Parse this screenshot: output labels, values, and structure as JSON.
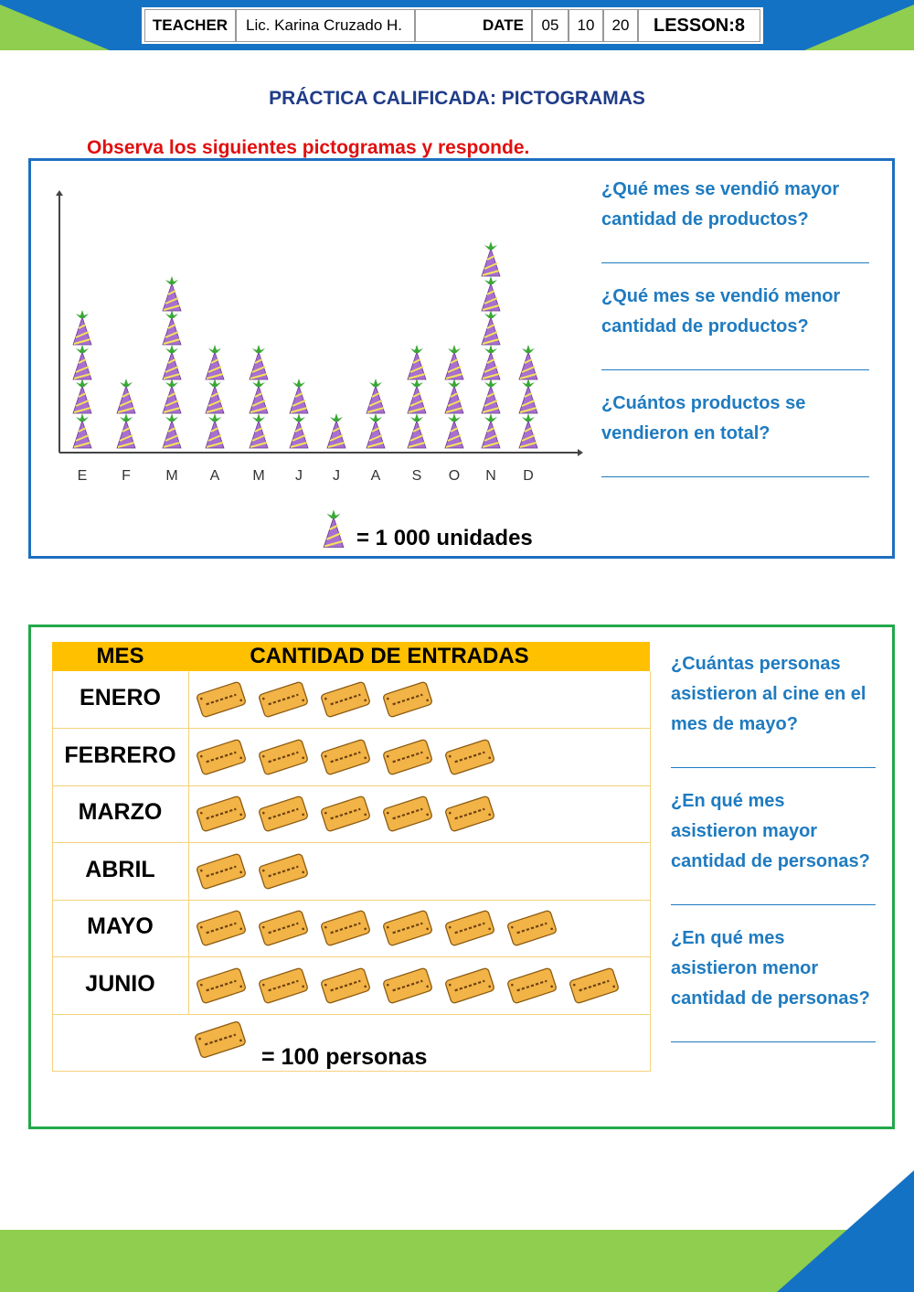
{
  "header": {
    "teacher_label": "TEACHER",
    "teacher": "Lic. Karina Cruzado H.",
    "date_label": "DATE",
    "date": [
      "05",
      "10",
      "20"
    ],
    "lesson": "LESSON:8"
  },
  "title": "PRÁCTICA CALIFICADA: PICTOGRAMAS",
  "instruction": "Observa los siguientes pictogramas y responde.",
  "pictogram1": {
    "categories": [
      "E",
      "F",
      "M",
      "A",
      "M",
      "J",
      "J",
      "A",
      "S",
      "O",
      "N",
      "D"
    ],
    "values": [
      4,
      2,
      5,
      3,
      3,
      2,
      1,
      2,
      3,
      3,
      6,
      3
    ],
    "legend": "= 1 000 unidades",
    "questions": [
      "¿Qué mes se vendió mayor cantidad de productos?",
      "¿Qué mes se vendió menor cantidad de productos?",
      "¿Cuántos productos se vendieron en total?"
    ]
  },
  "pictogram2": {
    "header": [
      "MES",
      "CANTIDAD DE ENTRADAS"
    ],
    "rows": [
      {
        "month": "ENERO",
        "count": 4
      },
      {
        "month": "FEBRERO",
        "count": 5
      },
      {
        "month": "MARZO",
        "count": 5
      },
      {
        "month": "ABRIL",
        "count": 2
      },
      {
        "month": "MAYO",
        "count": 6
      },
      {
        "month": "JUNIO",
        "count": 7
      }
    ],
    "legend": "= 100 personas",
    "questions": [
      "¿Cuántas personas asistieron al cine en el mes de mayo?",
      "¿En qué mes asistieron mayor cantidad de personas?",
      "¿En qué mes asistieron menor cantidad de personas?"
    ]
  }
}
